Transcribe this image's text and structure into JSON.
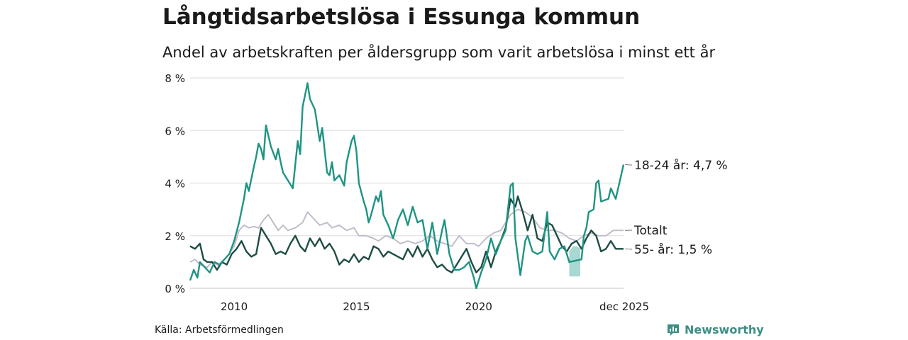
{
  "header": {
    "title": "Långtidsarbetslösa i Essunga kommun",
    "subtitle": "Andel av arbetskraften per åldersgrupp som varit arbetslösa i minst ett år"
  },
  "footer": {
    "source": "Källa: Arbetsförmedlingen",
    "brand": "Newsworthy",
    "brand_icon": "newsworthy-logo-icon",
    "brand_color": "#3d8f84"
  },
  "chart_data": {
    "type": "line",
    "title": "Långtidsarbetslösa i Essunga kommun",
    "subtitle": "Andel av arbetskraften per åldersgrupp som varit arbetslösa i minst ett år",
    "xlabel": "",
    "ylabel": "",
    "x_range": [
      2008.2,
      2025.92
    ],
    "ylim": [
      0,
      8
    ],
    "y_ticks": [
      0,
      2,
      4,
      6,
      8
    ],
    "y_tick_labels": [
      "0 %",
      "2 %",
      "4 %",
      "6 %",
      "8 %"
    ],
    "x_ticks": [
      2010,
      2015,
      2020,
      2025.92
    ],
    "x_tick_labels": [
      "2010",
      "2015",
      "2020",
      "dec 2025"
    ],
    "grid": true,
    "uncertainty_band": {
      "series": "18-24 år",
      "x": [
        2023.7,
        2023.85,
        2024.0,
        2024.15
      ],
      "lower": [
        0.45,
        0.45,
        0.45,
        0.45
      ],
      "upper": [
        1.4,
        1.6,
        1.6,
        1.5
      ],
      "color": "#9fd4cc"
    },
    "series": [
      {
        "name": "Totalt",
        "end_label": "Totalt",
        "color": "#c2bccb",
        "points": [
          [
            2008.2,
            1.0
          ],
          [
            2008.4,
            1.1
          ],
          [
            2008.6,
            0.9
          ],
          [
            2008.9,
            0.8
          ],
          [
            2009.1,
            1.0
          ],
          [
            2009.4,
            0.85
          ],
          [
            2009.6,
            1.1
          ],
          [
            2009.8,
            1.3
          ],
          [
            2010.0,
            1.6
          ],
          [
            2010.2,
            2.2
          ],
          [
            2010.4,
            2.4
          ],
          [
            2010.6,
            2.3
          ],
          [
            2010.8,
            2.35
          ],
          [
            2011.0,
            2.3
          ],
          [
            2011.2,
            2.6
          ],
          [
            2011.4,
            2.8
          ],
          [
            2011.6,
            2.5
          ],
          [
            2011.8,
            2.2
          ],
          [
            2012.0,
            2.4
          ],
          [
            2012.2,
            2.2
          ],
          [
            2012.5,
            2.3
          ],
          [
            2012.8,
            2.5
          ],
          [
            2013.0,
            2.9
          ],
          [
            2013.2,
            2.7
          ],
          [
            2013.5,
            2.4
          ],
          [
            2013.8,
            2.5
          ],
          [
            2014.0,
            2.3
          ],
          [
            2014.3,
            2.4
          ],
          [
            2014.6,
            2.2
          ],
          [
            2014.9,
            2.3
          ],
          [
            2015.1,
            2.0
          ],
          [
            2015.4,
            2.0
          ],
          [
            2015.7,
            1.9
          ],
          [
            2015.9,
            1.8
          ],
          [
            2016.2,
            2.0
          ],
          [
            2016.5,
            1.9
          ],
          [
            2016.8,
            1.7
          ],
          [
            2017.1,
            1.8
          ],
          [
            2017.4,
            1.7
          ],
          [
            2017.7,
            1.8
          ],
          [
            2018.0,
            2.0
          ],
          [
            2018.3,
            1.8
          ],
          [
            2018.6,
            1.7
          ],
          [
            2018.9,
            1.6
          ],
          [
            2019.2,
            2.0
          ],
          [
            2019.5,
            1.7
          ],
          [
            2019.8,
            1.7
          ],
          [
            2020.0,
            1.6
          ],
          [
            2020.3,
            1.9
          ],
          [
            2020.6,
            2.1
          ],
          [
            2020.9,
            2.2
          ],
          [
            2021.1,
            2.5
          ],
          [
            2021.3,
            2.8
          ],
          [
            2021.6,
            3.0
          ],
          [
            2021.9,
            2.9
          ],
          [
            2022.2,
            2.7
          ],
          [
            2022.5,
            2.3
          ],
          [
            2022.8,
            2.2
          ],
          [
            2023.1,
            2.2
          ],
          [
            2023.4,
            2.1
          ],
          [
            2023.7,
            1.9
          ],
          [
            2024.0,
            1.8
          ],
          [
            2024.3,
            2.0
          ],
          [
            2024.6,
            2.1
          ],
          [
            2024.9,
            2.0
          ],
          [
            2025.2,
            2.0
          ],
          [
            2025.5,
            2.2
          ],
          [
            2025.92,
            2.2
          ]
        ]
      },
      {
        "name": "55- år",
        "end_label": "55- år: 1,5 %",
        "color": "#1e4c44",
        "points": [
          [
            2008.2,
            1.6
          ],
          [
            2008.4,
            1.5
          ],
          [
            2008.6,
            1.7
          ],
          [
            2008.75,
            1.1
          ],
          [
            2008.9,
            1.0
          ],
          [
            2009.1,
            1.0
          ],
          [
            2009.3,
            0.7
          ],
          [
            2009.5,
            1.0
          ],
          [
            2009.7,
            0.9
          ],
          [
            2009.9,
            1.3
          ],
          [
            2010.1,
            1.5
          ],
          [
            2010.3,
            1.8
          ],
          [
            2010.5,
            1.4
          ],
          [
            2010.7,
            1.2
          ],
          [
            2010.9,
            1.3
          ],
          [
            2011.1,
            2.3
          ],
          [
            2011.3,
            2.0
          ],
          [
            2011.5,
            1.7
          ],
          [
            2011.7,
            1.3
          ],
          [
            2011.9,
            1.4
          ],
          [
            2012.1,
            1.3
          ],
          [
            2012.3,
            1.7
          ],
          [
            2012.5,
            2.0
          ],
          [
            2012.7,
            1.6
          ],
          [
            2012.9,
            1.4
          ],
          [
            2013.1,
            1.9
          ],
          [
            2013.3,
            1.6
          ],
          [
            2013.5,
            1.9
          ],
          [
            2013.7,
            1.5
          ],
          [
            2013.9,
            1.7
          ],
          [
            2014.1,
            1.4
          ],
          [
            2014.3,
            0.9
          ],
          [
            2014.5,
            1.1
          ],
          [
            2014.7,
            1.0
          ],
          [
            2014.9,
            1.3
          ],
          [
            2015.1,
            1.0
          ],
          [
            2015.3,
            1.2
          ],
          [
            2015.5,
            1.1
          ],
          [
            2015.7,
            1.6
          ],
          [
            2015.9,
            1.5
          ],
          [
            2016.1,
            1.2
          ],
          [
            2016.3,
            1.4
          ],
          [
            2016.5,
            1.3
          ],
          [
            2016.7,
            1.2
          ],
          [
            2016.9,
            1.1
          ],
          [
            2017.1,
            1.5
          ],
          [
            2017.3,
            1.2
          ],
          [
            2017.5,
            1.6
          ],
          [
            2017.7,
            1.2
          ],
          [
            2017.9,
            1.5
          ],
          [
            2018.1,
            1.1
          ],
          [
            2018.3,
            0.8
          ],
          [
            2018.5,
            0.9
          ],
          [
            2018.7,
            0.7
          ],
          [
            2018.9,
            0.6
          ],
          [
            2019.1,
            0.9
          ],
          [
            2019.3,
            1.2
          ],
          [
            2019.5,
            1.5
          ],
          [
            2019.7,
            1.0
          ],
          [
            2019.9,
            0.6
          ],
          [
            2020.1,
            0.8
          ],
          [
            2020.3,
            1.4
          ],
          [
            2020.5,
            0.8
          ],
          [
            2020.7,
            1.4
          ],
          [
            2020.9,
            1.8
          ],
          [
            2021.1,
            2.3
          ],
          [
            2021.3,
            3.4
          ],
          [
            2021.5,
            3.1
          ],
          [
            2021.6,
            3.5
          ],
          [
            2021.8,
            2.9
          ],
          [
            2022.0,
            2.2
          ],
          [
            2022.2,
            2.8
          ],
          [
            2022.4,
            1.9
          ],
          [
            2022.6,
            1.8
          ],
          [
            2022.8,
            2.5
          ],
          [
            2023.0,
            2.4
          ],
          [
            2023.2,
            2.0
          ],
          [
            2023.4,
            1.6
          ],
          [
            2023.6,
            1.4
          ],
          [
            2023.8,
            1.7
          ],
          [
            2024.0,
            1.8
          ],
          [
            2024.2,
            1.5
          ],
          [
            2024.4,
            1.9
          ],
          [
            2024.6,
            2.2
          ],
          [
            2024.8,
            2.0
          ],
          [
            2025.0,
            1.4
          ],
          [
            2025.2,
            1.5
          ],
          [
            2025.4,
            1.8
          ],
          [
            2025.6,
            1.5
          ],
          [
            2025.92,
            1.5
          ]
        ]
      },
      {
        "name": "18-24 år",
        "end_label": "18-24 år: 4,7 %",
        "color": "#1e9483",
        "points": [
          [
            2008.2,
            0.3
          ],
          [
            2008.35,
            0.7
          ],
          [
            2008.5,
            0.4
          ],
          [
            2008.6,
            1.0
          ],
          [
            2008.8,
            0.8
          ],
          [
            2009.0,
            0.6
          ],
          [
            2009.2,
            1.0
          ],
          [
            2009.4,
            0.9
          ],
          [
            2009.6,
            1.1
          ],
          [
            2009.8,
            1.3
          ],
          [
            2010.0,
            1.8
          ],
          [
            2010.2,
            2.5
          ],
          [
            2010.4,
            3.4
          ],
          [
            2010.5,
            4.0
          ],
          [
            2010.6,
            3.7
          ],
          [
            2010.8,
            4.6
          ],
          [
            2010.9,
            5.0
          ],
          [
            2011.0,
            5.5
          ],
          [
            2011.1,
            5.3
          ],
          [
            2011.2,
            4.9
          ],
          [
            2011.3,
            6.2
          ],
          [
            2011.5,
            5.4
          ],
          [
            2011.7,
            4.9
          ],
          [
            2011.8,
            5.3
          ],
          [
            2011.9,
            4.8
          ],
          [
            2012.0,
            4.4
          ],
          [
            2012.2,
            4.1
          ],
          [
            2012.4,
            3.8
          ],
          [
            2012.6,
            5.6
          ],
          [
            2012.7,
            5.1
          ],
          [
            2012.8,
            6.9
          ],
          [
            2013.0,
            7.8
          ],
          [
            2013.1,
            7.2
          ],
          [
            2013.3,
            6.8
          ],
          [
            2013.5,
            5.6
          ],
          [
            2013.6,
            6.1
          ],
          [
            2013.8,
            4.4
          ],
          [
            2013.9,
            4.3
          ],
          [
            2014.0,
            4.8
          ],
          [
            2014.1,
            4.1
          ],
          [
            2014.3,
            4.3
          ],
          [
            2014.5,
            3.9
          ],
          [
            2014.6,
            4.8
          ],
          [
            2014.8,
            5.6
          ],
          [
            2014.9,
            5.8
          ],
          [
            2015.0,
            5.2
          ],
          [
            2015.1,
            4.0
          ],
          [
            2015.3,
            3.3
          ],
          [
            2015.4,
            3.0
          ],
          [
            2015.5,
            2.5
          ],
          [
            2015.6,
            2.8
          ],
          [
            2015.8,
            3.5
          ],
          [
            2015.9,
            3.3
          ],
          [
            2016.0,
            3.7
          ],
          [
            2016.1,
            2.8
          ],
          [
            2016.3,
            2.4
          ],
          [
            2016.5,
            1.9
          ],
          [
            2016.7,
            2.6
          ],
          [
            2016.9,
            3.0
          ],
          [
            2017.1,
            2.4
          ],
          [
            2017.3,
            3.1
          ],
          [
            2017.5,
            2.5
          ],
          [
            2017.7,
            2.6
          ],
          [
            2017.9,
            1.5
          ],
          [
            2018.1,
            2.5
          ],
          [
            2018.3,
            1.3
          ],
          [
            2018.5,
            2.2
          ],
          [
            2018.6,
            2.6
          ],
          [
            2018.8,
            1.3
          ],
          [
            2019.0,
            0.7
          ],
          [
            2019.2,
            0.7
          ],
          [
            2019.4,
            0.8
          ],
          [
            2019.6,
            1.0
          ],
          [
            2019.8,
            0.4
          ],
          [
            2019.9,
            0.0
          ],
          [
            2020.1,
            0.6
          ],
          [
            2020.3,
            1.1
          ],
          [
            2020.5,
            1.9
          ],
          [
            2020.7,
            1.3
          ],
          [
            2020.9,
            1.8
          ],
          [
            2021.1,
            2.2
          ],
          [
            2021.3,
            3.9
          ],
          [
            2021.4,
            4.0
          ],
          [
            2021.5,
            1.9
          ],
          [
            2021.7,
            0.5
          ],
          [
            2021.9,
            1.8
          ],
          [
            2022.0,
            2.0
          ],
          [
            2022.2,
            1.4
          ],
          [
            2022.4,
            1.3
          ],
          [
            2022.6,
            1.4
          ],
          [
            2022.8,
            2.9
          ],
          [
            2022.9,
            1.4
          ],
          [
            2023.1,
            1.1
          ],
          [
            2023.3,
            1.5
          ],
          [
            2023.5,
            1.6
          ],
          [
            2023.7,
            1.0
          ],
          [
            2024.2,
            1.1
          ],
          [
            2024.3,
            2.0
          ],
          [
            2024.4,
            2.3
          ],
          [
            2024.5,
            2.9
          ],
          [
            2024.7,
            3.0
          ],
          [
            2024.8,
            4.0
          ],
          [
            2024.9,
            4.1
          ],
          [
            2025.0,
            3.3
          ],
          [
            2025.3,
            3.4
          ],
          [
            2025.4,
            3.8
          ],
          [
            2025.6,
            3.4
          ],
          [
            2025.92,
            4.7
          ]
        ]
      }
    ]
  }
}
